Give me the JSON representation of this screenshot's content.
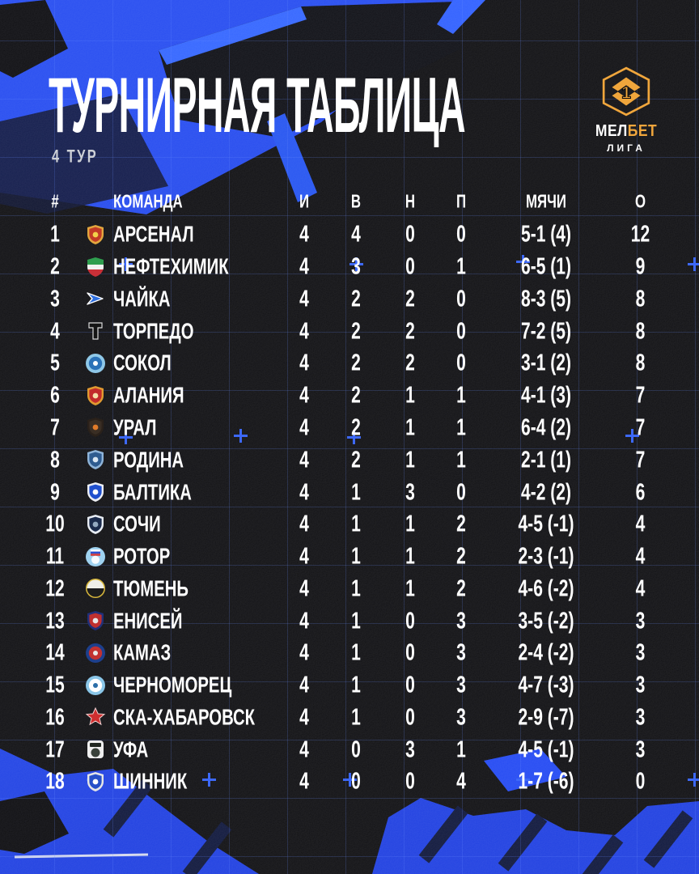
{
  "brand": {
    "name": "МЕЛБЕТ ЛИГА",
    "badge_number": "1",
    "wordmark_left": "МЕЛ",
    "wordmark_right": "БЕТ",
    "league": "ЛИГА",
    "gold": "#F0A63C"
  },
  "colors": {
    "accent_blue": "#1E45F2",
    "background": "#0A0A0D",
    "grid_line": "#22398F",
    "plus_mark": "#2D5CF7",
    "text": "#FFFFFF",
    "muted_text": "#CDD0D6"
  },
  "chart_data": {
    "type": "table",
    "title": "ТУРНИРНАЯ ТАБЛИЦА",
    "subtitle": "4 ТУР",
    "columns": [
      "#",
      "КОМАНДА",
      "И",
      "В",
      "Н",
      "П",
      "МЯЧИ",
      "О"
    ],
    "rows": [
      {
        "pos": "1",
        "team": "АРСЕНАЛ",
        "logo": {
          "name": "arsenal-logo",
          "shape": "shield",
          "colors": [
            "#E2A63E",
            "#C23A26",
            "#F2D24A"
          ]
        },
        "played": "4",
        "wins": "4",
        "draws": "0",
        "losses": "0",
        "goals": "5-1 (4)",
        "points": "12"
      },
      {
        "pos": "2",
        "team": "НЕФТЕХИМИК",
        "logo": {
          "name": "neftekhimik-logo",
          "shape": "bands",
          "colors": [
            "#2F9E4F",
            "#F2F2F2",
            "#C93038"
          ]
        },
        "played": "4",
        "wins": "3",
        "draws": "0",
        "losses": "1",
        "goals": "6-5 (1)",
        "points": "9"
      },
      {
        "pos": "3",
        "team": "ЧАЙКА",
        "logo": {
          "name": "chaika-logo",
          "shape": "arrow",
          "colors": [
            "#2E6FE0",
            "#FFFFFF"
          ]
        },
        "played": "4",
        "wins": "2",
        "draws": "2",
        "losses": "0",
        "goals": "8-3 (5)",
        "points": "8"
      },
      {
        "pos": "4",
        "team": "ТОРПЕДО",
        "logo": {
          "name": "torpedo-logo",
          "shape": "letter-t",
          "colors": [
            "#151515",
            "#DADADA"
          ]
        },
        "played": "4",
        "wins": "2",
        "draws": "2",
        "losses": "0",
        "goals": "7-2 (5)",
        "points": "8"
      },
      {
        "pos": "5",
        "team": "СОКОЛ",
        "logo": {
          "name": "sokol-logo",
          "shape": "circle",
          "colors": [
            "#8FC8E8",
            "#2B72B8",
            "#FFFFFF"
          ]
        },
        "played": "4",
        "wins": "2",
        "draws": "2",
        "losses": "0",
        "goals": "3-1 (2)",
        "points": "8"
      },
      {
        "pos": "6",
        "team": "АЛАНИЯ",
        "logo": {
          "name": "alania-logo",
          "shape": "shield",
          "colors": [
            "#E09A31",
            "#C22B2B",
            "#F5E0A8"
          ]
        },
        "played": "4",
        "wins": "2",
        "draws": "1",
        "losses": "1",
        "goals": "4-1 (3)",
        "points": "7"
      },
      {
        "pos": "7",
        "team": "УРАЛ",
        "logo": {
          "name": "ural-logo",
          "shape": "shield",
          "colors": [
            "#2A211A",
            "#3A2E24",
            "#E07B2A"
          ]
        },
        "played": "4",
        "wins": "2",
        "draws": "1",
        "losses": "1",
        "goals": "6-4 (2)",
        "points": "7"
      },
      {
        "pos": "8",
        "team": "РОДИНА",
        "logo": {
          "name": "rodina-logo",
          "shape": "shield",
          "colors": [
            "#8FB4D8",
            "#2E5B8F",
            "#D9E6F2"
          ]
        },
        "played": "4",
        "wins": "2",
        "draws": "1",
        "losses": "1",
        "goals": "2-1 (1)",
        "points": "7"
      },
      {
        "pos": "9",
        "team": "БАЛТИКА",
        "logo": {
          "name": "baltika-logo",
          "shape": "shield",
          "colors": [
            "#EDEFF5",
            "#2050CE",
            "#FFFFFF"
          ]
        },
        "played": "4",
        "wins": "1",
        "draws": "3",
        "losses": "0",
        "goals": "4-2 (2)",
        "points": "6"
      },
      {
        "pos": "10",
        "team": "СОЧИ",
        "logo": {
          "name": "sochi-logo",
          "shape": "shield",
          "colors": [
            "#E8EDF4",
            "#1B2B4C",
            "#93A9C0"
          ]
        },
        "played": "4",
        "wins": "1",
        "draws": "1",
        "losses": "2",
        "goals": "4-5 (-1)",
        "points": "4"
      },
      {
        "pos": "11",
        "team": "РОТОР",
        "logo": {
          "name": "rotor-logo",
          "shape": "circle-flag",
          "colors": [
            "#9FD2F0",
            "#FFFFFF",
            "#2B4FD0",
            "#D23C3C"
          ]
        },
        "played": "4",
        "wins": "1",
        "draws": "1",
        "losses": "2",
        "goals": "2-3 (-1)",
        "points": "4"
      },
      {
        "pos": "12",
        "team": "ТЮМЕНЬ",
        "logo": {
          "name": "tyumen-logo",
          "shape": "circle-half",
          "colors": [
            "#EFEFE8",
            "#1C1C1C",
            "#D9B83C"
          ]
        },
        "played": "4",
        "wins": "1",
        "draws": "1",
        "losses": "2",
        "goals": "4-6 (-2)",
        "points": "4"
      },
      {
        "pos": "13",
        "team": "ЕНИСЕЙ",
        "logo": {
          "name": "enisey-logo",
          "shape": "shield",
          "colors": [
            "#20307A",
            "#BF3030",
            "#E8E8E8"
          ]
        },
        "played": "4",
        "wins": "1",
        "draws": "0",
        "losses": "3",
        "goals": "3-5 (-2)",
        "points": "3"
      },
      {
        "pos": "14",
        "team": "КАМАЗ",
        "logo": {
          "name": "kamaz-logo",
          "shape": "circle",
          "colors": [
            "#1D3F8C",
            "#C23131",
            "#E8E8E8"
          ]
        },
        "played": "4",
        "wins": "1",
        "draws": "0",
        "losses": "3",
        "goals": "2-4 (-2)",
        "points": "3"
      },
      {
        "pos": "15",
        "team": "ЧЕРНОМОРЕЦ",
        "logo": {
          "name": "chernomorets-logo",
          "shape": "circle",
          "colors": [
            "#8AC6E8",
            "#FFFFFF",
            "#2C6EA8"
          ]
        },
        "played": "4",
        "wins": "1",
        "draws": "0",
        "losses": "3",
        "goals": "4-7 (-3)",
        "points": "3"
      },
      {
        "pos": "16",
        "team": "СКА-ХАБАРОВСК",
        "logo": {
          "name": "ska-khabarovsk-logo",
          "shape": "star",
          "colors": [
            "#CE2F2F",
            "#8C1E1E",
            "#F0D0D0"
          ]
        },
        "played": "4",
        "wins": "1",
        "draws": "0",
        "losses": "3",
        "goals": "2-9 (-7)",
        "points": "3"
      },
      {
        "pos": "17",
        "team": "УФА",
        "logo": {
          "name": "ufa-logo",
          "shape": "square",
          "colors": [
            "#EFEFEF",
            "#222822",
            "#39413A"
          ]
        },
        "played": "4",
        "wins": "0",
        "draws": "3",
        "losses": "1",
        "goals": "4-5 (-1)",
        "points": "3"
      },
      {
        "pos": "18",
        "team": "ШИННИК",
        "logo": {
          "name": "shinnik-logo",
          "shape": "shield",
          "colors": [
            "#E6E6E6",
            "#2750C8",
            "#FFFFFF"
          ]
        },
        "played": "4",
        "wins": "0",
        "draws": "0",
        "losses": "4",
        "goals": "1-7 (-6)",
        "points": "0"
      }
    ]
  }
}
